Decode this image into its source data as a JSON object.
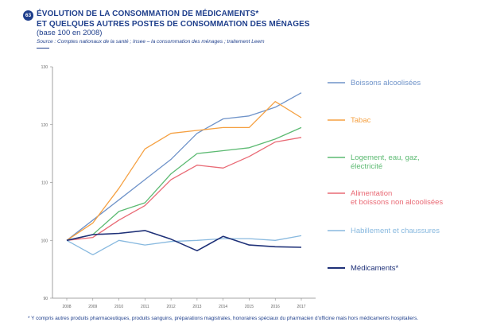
{
  "figure_number": "63",
  "title_line1": "ÉVOLUTION DE LA CONSOMMATION DE MÉDICAMENTS*",
  "title_line2": "ET QUELQUES AUTRES POSTES DE CONSOMMATION DES MÉNAGES",
  "subtitle": "(base 100 en 2008)",
  "source": "Source : Comptes nationaux de la santé ; Insee – la consommation des ménages ; traitement Leem",
  "footnote": "* Y compris autres produits pharmaceutiques, produits sanguins, préparations magistrales, honoraires spéciaux du pharmacien d'officine mais hors médicaments hospitaliers.",
  "chart_data": {
    "type": "line",
    "x": [
      "2008",
      "2009",
      "2010",
      "2011",
      "2012",
      "2013",
      "2014",
      "2015",
      "2016",
      "2017"
    ],
    "ylim": [
      90,
      130
    ],
    "yticks": [
      90,
      100,
      110,
      120,
      130
    ],
    "grid": false,
    "legend_position": "right",
    "series": [
      {
        "name": "Boissons alcoolisées",
        "color": "#6f93c9",
        "values": [
          100,
          103.5,
          107,
          110.5,
          114,
          118.5,
          121,
          121.5,
          123,
          125.5
        ]
      },
      {
        "name": "Tabac",
        "color": "#f5a041",
        "values": [
          100,
          103,
          109,
          115.8,
          118.5,
          119,
          119.5,
          119.5,
          124,
          121.2
        ]
      },
      {
        "name": "Logement, eau, gaz, électricité",
        "color": "#5cba72",
        "values": [
          100,
          101,
          105,
          106.5,
          111.5,
          115,
          115.5,
          116,
          117.5,
          119.5
        ]
      },
      {
        "name": "Alimentation et boissons non alcoolisées",
        "color": "#e96a75",
        "values": [
          100,
          100.5,
          103.5,
          106,
          110.5,
          113,
          112.5,
          114.5,
          117,
          117.8
        ]
      },
      {
        "name": "Habillement et chaussures",
        "color": "#88b9df",
        "values": [
          100,
          97.5,
          100,
          99.2,
          99.8,
          100,
          100.3,
          100.3,
          100,
          100.8
        ]
      },
      {
        "name": "Médicaments*",
        "color": "#1f3178",
        "values": [
          100,
          101,
          101.2,
          101.7,
          100.2,
          98.2,
          100.7,
          99.2,
          98.9,
          98.8
        ]
      }
    ]
  }
}
